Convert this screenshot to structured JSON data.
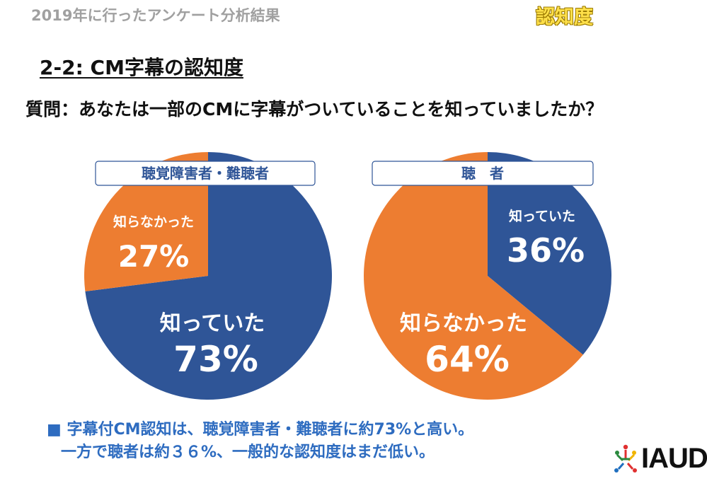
{
  "header": {
    "title": "2019年に行ったアンケート分析結果",
    "tag": "認知度"
  },
  "section_title": "2-2: CM字幕の認知度",
  "question": "質問：あなたは一部のCMに字幕がついていることを知っていましたか？",
  "chart_data": [
    {
      "type": "pie",
      "title": "聴覚障害者・難聴者",
      "slices": [
        {
          "label": "知っていた",
          "value": 73,
          "display": "73%",
          "color": "#2f5597"
        },
        {
          "label": "知らなかった",
          "value": 27,
          "display": "27%",
          "color": "#ed7d31"
        }
      ]
    },
    {
      "type": "pie",
      "title": "聴　者",
      "slices": [
        {
          "label": "知っていた",
          "value": 36,
          "display": "36%",
          "color": "#2f5597"
        },
        {
          "label": "知らなかった",
          "value": 64,
          "display": "64%",
          "color": "#ed7d31"
        }
      ]
    }
  ],
  "summary": {
    "bullet": "■",
    "line1": "字幕付CM認知は、聴覚障害者・難聴者に約73%と高い。",
    "line2": "一方で聴者は約３６%、一般的な認知度はまだ低い。"
  },
  "logo": {
    "text": "IAUD",
    "colors": [
      "#e03030",
      "#2b8a3e",
      "#f0b400",
      "#1f6fbf",
      "#e03030"
    ]
  }
}
